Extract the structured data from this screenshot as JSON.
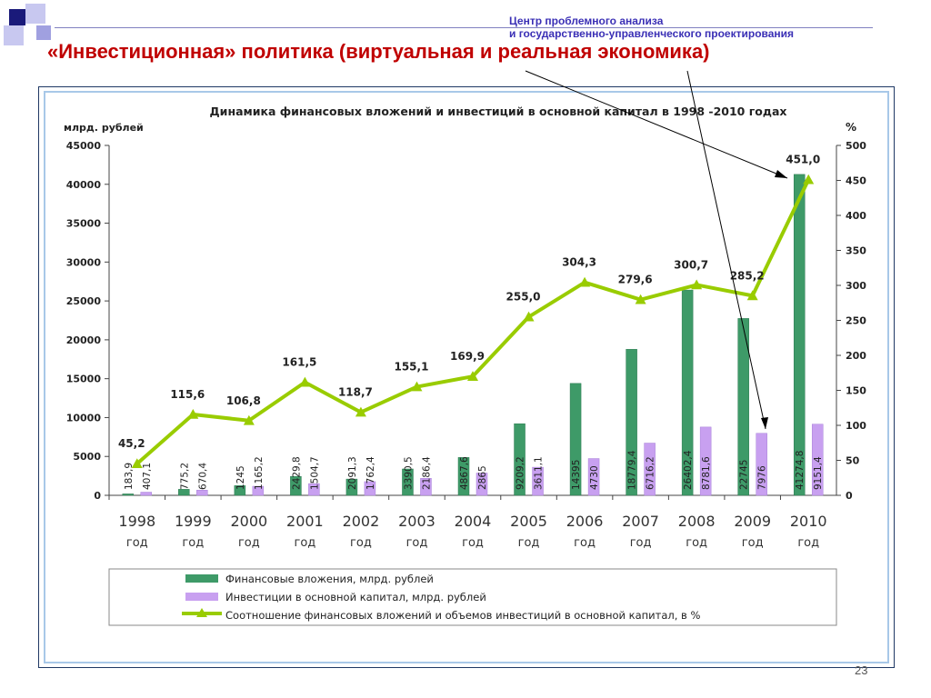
{
  "header": {
    "org_line1": "Центр проблемного анализа",
    "org_line2": "и государственно-управленческого проектирования",
    "title": "«Инвестиционная» политика (виртуальная и реальная экономика)",
    "page_number": "23"
  },
  "colors": {
    "title": "#c00000",
    "org": "#3a2fb5",
    "financial": "#3e9a68",
    "investment": "#c8a0f0",
    "ratio": "#99cc00"
  },
  "chart_data": {
    "type": "bar",
    "title": "Динамика финансовых вложений и инвестиций в основной капитал в 1998 -2010 годах",
    "ylabel": "млрд. рублей",
    "y2label": "%",
    "ylim": [
      0,
      45000
    ],
    "y2lim": [
      0,
      500
    ],
    "yticks": [
      "0",
      "5000",
      "10000",
      "15000",
      "20000",
      "25000",
      "30000",
      "35000",
      "40000",
      "45000"
    ],
    "y2ticks": [
      "0",
      "50",
      "100",
      "150",
      "200",
      "250",
      "300",
      "350",
      "400",
      "450",
      "500"
    ],
    "categories": [
      "1998",
      "1999",
      "2000",
      "2001",
      "2002",
      "2003",
      "2004",
      "2005",
      "2006",
      "2007",
      "2008",
      "2009",
      "2010"
    ],
    "category_sublabel": "год",
    "series": [
      {
        "name": "Финансовые вложения, млрд. рублей",
        "type": "bar",
        "values": [
          183.9,
          775.2,
          1245,
          2429.8,
          2091.3,
          3390.5,
          4867.6,
          9209.2,
          14395,
          18779.4,
          26402.4,
          22745,
          41274.8
        ],
        "labels": [
          "183,9",
          "775,2",
          "1245",
          "2429,8",
          "2091,3",
          "3390,5",
          "4867,6",
          "9209,2",
          "14395",
          "18779,4",
          "26402,4",
          "22745",
          "41274,8"
        ]
      },
      {
        "name": "Инвестиции в основной капитал, млрд. рублей",
        "type": "bar",
        "values": [
          407.1,
          670.4,
          1165.2,
          1504.7,
          1762.4,
          2186.4,
          2865,
          3611.1,
          4730,
          6716.2,
          8781.6,
          7976,
          9151.4
        ],
        "labels": [
          "407,1",
          "670,4",
          "1165,2",
          "1504,7",
          "1762,4",
          "2186,4",
          "2865",
          "3611,1",
          "4730",
          "6716,2",
          "8781,6",
          "7976",
          "9151,4"
        ]
      },
      {
        "name": "Соотношение финансовых вложений и объемов инвестиций в основной капитал, в %",
        "type": "line",
        "axis": "right",
        "values": [
          45.2,
          115.6,
          106.8,
          161.5,
          118.7,
          155.1,
          169.9,
          255.0,
          304.3,
          279.6,
          300.7,
          285.2,
          451.0
        ],
        "labels": [
          "45,2",
          "115,6",
          "106,8",
          "161,5",
          "118,7",
          "155,1",
          "169,9",
          "255,0",
          "304,3",
          "279,6",
          "300,7",
          "285,2",
          "451,0"
        ]
      }
    ]
  }
}
